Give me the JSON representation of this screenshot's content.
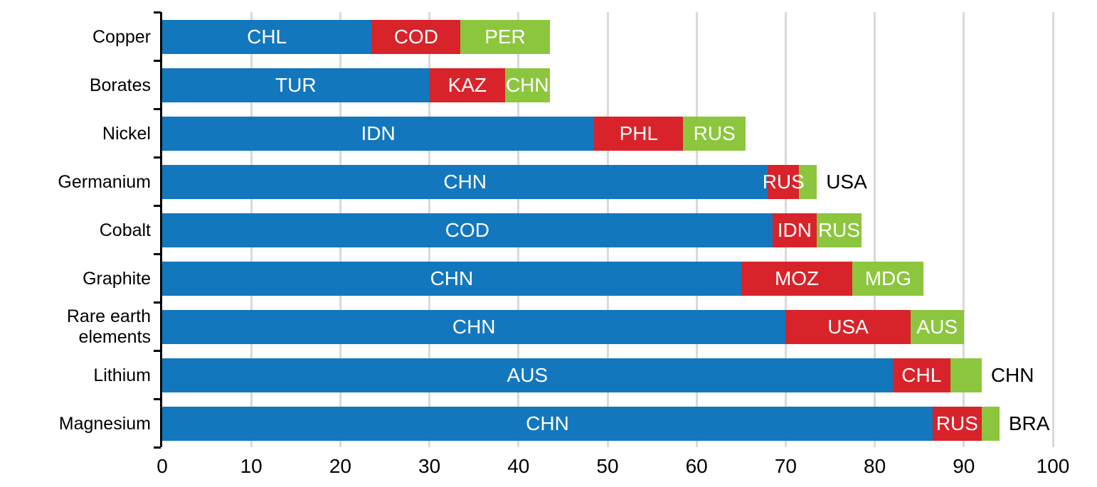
{
  "chart_data": {
    "type": "bar",
    "orientation": "horizontal",
    "stacked": true,
    "title": "",
    "xlabel": "",
    "ylabel": "",
    "xlim": [
      0,
      100
    ],
    "x_ticks": [
      0,
      10,
      20,
      30,
      40,
      50,
      60,
      70,
      80,
      90,
      100
    ],
    "grid": "vertical",
    "legend_position": "none",
    "colors": {
      "blue": "#1377be",
      "red": "#d8232a",
      "green": "#8cc63e",
      "gridline": "#d9d9d9",
      "axis": "#000000",
      "inside_label_text": "#ffffff",
      "outside_label_text": "#000000"
    },
    "categories": [
      "Copper",
      "Borates",
      "Nickel",
      "Germanium",
      "Cobalt",
      "Graphite",
      "Rare earth elements",
      "Lithium",
      "Magnesium"
    ],
    "rows": [
      {
        "category": "Copper",
        "segments": [
          {
            "code": "CHL",
            "value": 23.5,
            "color": "blue",
            "label_position": "inside"
          },
          {
            "code": "COD",
            "value": 10,
            "color": "red",
            "label_position": "inside"
          },
          {
            "code": "PER",
            "value": 10,
            "color": "green",
            "label_position": "inside"
          }
        ]
      },
      {
        "category": "Borates",
        "segments": [
          {
            "code": "TUR",
            "value": 30,
            "color": "blue",
            "label_position": "inside"
          },
          {
            "code": "KAZ",
            "value": 8.5,
            "color": "red",
            "label_position": "inside"
          },
          {
            "code": "CHN",
            "value": 5,
            "color": "green",
            "label_position": "inside"
          }
        ]
      },
      {
        "category": "Nickel",
        "segments": [
          {
            "code": "IDN",
            "value": 48.5,
            "color": "blue",
            "label_position": "inside"
          },
          {
            "code": "PHL",
            "value": 10,
            "color": "red",
            "label_position": "inside"
          },
          {
            "code": "RUS",
            "value": 7,
            "color": "green",
            "label_position": "inside"
          }
        ]
      },
      {
        "category": "Germanium",
        "segments": [
          {
            "code": "CHN",
            "value": 68,
            "color": "blue",
            "label_position": "inside"
          },
          {
            "code": "RUS",
            "value": 3.5,
            "color": "red",
            "label_position": "inside"
          },
          {
            "code": "USA",
            "value": 2,
            "color": "green",
            "label_position": "outside"
          }
        ]
      },
      {
        "category": "Cobalt",
        "segments": [
          {
            "code": "COD",
            "value": 68.5,
            "color": "blue",
            "label_position": "inside"
          },
          {
            "code": "IDN",
            "value": 5,
            "color": "red",
            "label_position": "inside"
          },
          {
            "code": "RUS",
            "value": 5,
            "color": "green",
            "label_position": "inside"
          }
        ]
      },
      {
        "category": "Graphite",
        "segments": [
          {
            "code": "CHN",
            "value": 65,
            "color": "blue",
            "label_position": "inside"
          },
          {
            "code": "MOZ",
            "value": 12.5,
            "color": "red",
            "label_position": "inside"
          },
          {
            "code": "MDG",
            "value": 8,
            "color": "green",
            "label_position": "inside"
          }
        ]
      },
      {
        "category": "Rare earth elements",
        "segments": [
          {
            "code": "CHN",
            "value": 70,
            "color": "blue",
            "label_position": "inside"
          },
          {
            "code": "USA",
            "value": 14,
            "color": "red",
            "label_position": "inside"
          },
          {
            "code": "AUS",
            "value": 6,
            "color": "green",
            "label_position": "inside"
          }
        ]
      },
      {
        "category": "Lithium",
        "segments": [
          {
            "code": "AUS",
            "value": 82,
            "color": "blue",
            "label_position": "inside"
          },
          {
            "code": "CHL",
            "value": 6.5,
            "color": "red",
            "label_position": "inside"
          },
          {
            "code": "CHN",
            "value": 3.5,
            "color": "green",
            "label_position": "outside"
          }
        ]
      },
      {
        "category": "Magnesium",
        "segments": [
          {
            "code": "CHN",
            "value": 86.5,
            "color": "blue",
            "label_position": "inside"
          },
          {
            "code": "RUS",
            "value": 5.5,
            "color": "red",
            "label_position": "inside"
          },
          {
            "code": "BRA",
            "value": 2,
            "color": "green",
            "label_position": "outside"
          }
        ]
      }
    ]
  }
}
